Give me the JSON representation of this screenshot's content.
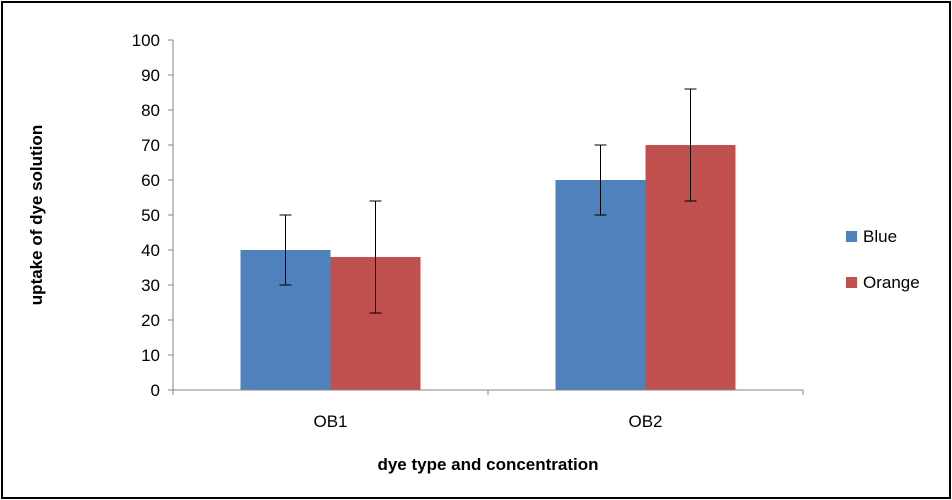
{
  "chart_data": {
    "type": "bar",
    "title": "",
    "xlabel": "dye type and concentration",
    "ylabel": "uptake of dye solution",
    "categories": [
      "OB1",
      "OB2"
    ],
    "ylim": [
      0,
      100
    ],
    "yticks": [
      0,
      10,
      20,
      30,
      40,
      50,
      60,
      70,
      80,
      90,
      100
    ],
    "grid": false,
    "legend_position": "right",
    "series": [
      {
        "name": "Blue",
        "color": "#4F81BD",
        "values": [
          40,
          60
        ],
        "error": [
          10,
          10
        ]
      },
      {
        "name": "Orange",
        "color": "#C0504D",
        "values": [
          38,
          70
        ],
        "error": [
          16,
          16
        ]
      }
    ]
  }
}
